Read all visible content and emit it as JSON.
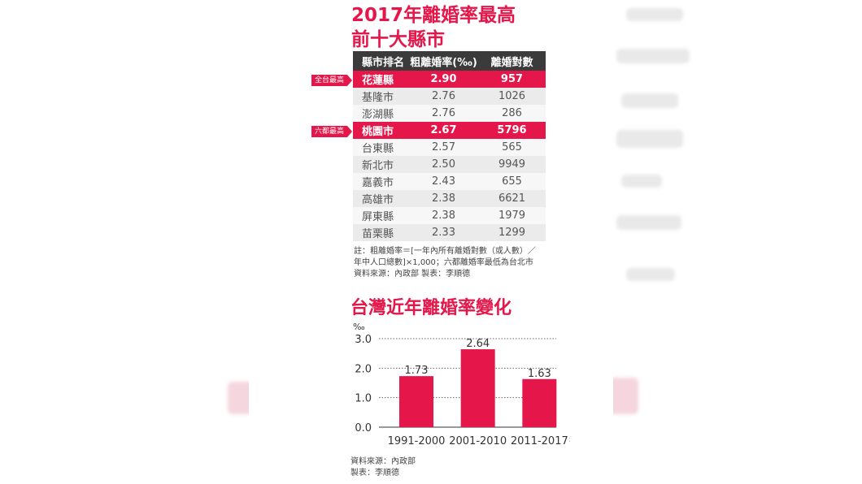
{
  "table": {
    "title_line1": "2017年離婚率最高",
    "title_line2": "前十大縣市",
    "headers": [
      "縣市排名",
      "粗離婚率(‰)",
      "離婚對數"
    ],
    "rows": [
      {
        "name": "花蓮縣",
        "rate": "2.90",
        "pairs": "957",
        "highlight": true,
        "tag": "全台最高"
      },
      {
        "name": "基隆市",
        "rate": "2.76",
        "pairs": "1026"
      },
      {
        "name": "澎湖縣",
        "rate": "2.76",
        "pairs": "286"
      },
      {
        "name": "桃園市",
        "rate": "2.67",
        "pairs": "5796",
        "highlight": true,
        "tag": "六都最高"
      },
      {
        "name": "台東縣",
        "rate": "2.57",
        "pairs": "565"
      },
      {
        "name": "新北市",
        "rate": "2.50",
        "pairs": "9949"
      },
      {
        "name": "嘉義市",
        "rate": "2.43",
        "pairs": "655"
      },
      {
        "name": "高雄市",
        "rate": "2.38",
        "pairs": "6621"
      },
      {
        "name": "屏東縣",
        "rate": "2.38",
        "pairs": "1979"
      },
      {
        "name": "苗栗縣",
        "rate": "2.33",
        "pairs": "1299"
      }
    ],
    "note_lines": [
      "註：粗離婚率＝[一年內所有離婚對數（或人數）／",
      "年中人口總數]×1,000；六都離婚率最低為台北市",
      "資料來源：內政部 製表：李順德"
    ]
  },
  "chart_data": {
    "type": "bar",
    "title": "台灣近年離婚率變化",
    "categories": [
      "1991-2000",
      "2001-2010",
      "2011-2017"
    ],
    "values": [
      1.73,
      2.64,
      1.63
    ],
    "data_labels": [
      "1.73",
      "2.64",
      "1.63"
    ],
    "ylabel": "‰",
    "xunit": "年",
    "yticks": [
      "3.0",
      "2.0",
      "1.0",
      "0.0"
    ],
    "ytick_values": [
      3.0,
      2.0,
      1.0,
      0.0
    ],
    "ylim": [
      0,
      3.0
    ],
    "grid": true,
    "bar_color": "#e5174a",
    "source_lines": [
      "資料來源：內政部",
      "製表：李順德"
    ]
  },
  "colors": {
    "accent": "#e5174a",
    "header": "#3b3b3b"
  }
}
